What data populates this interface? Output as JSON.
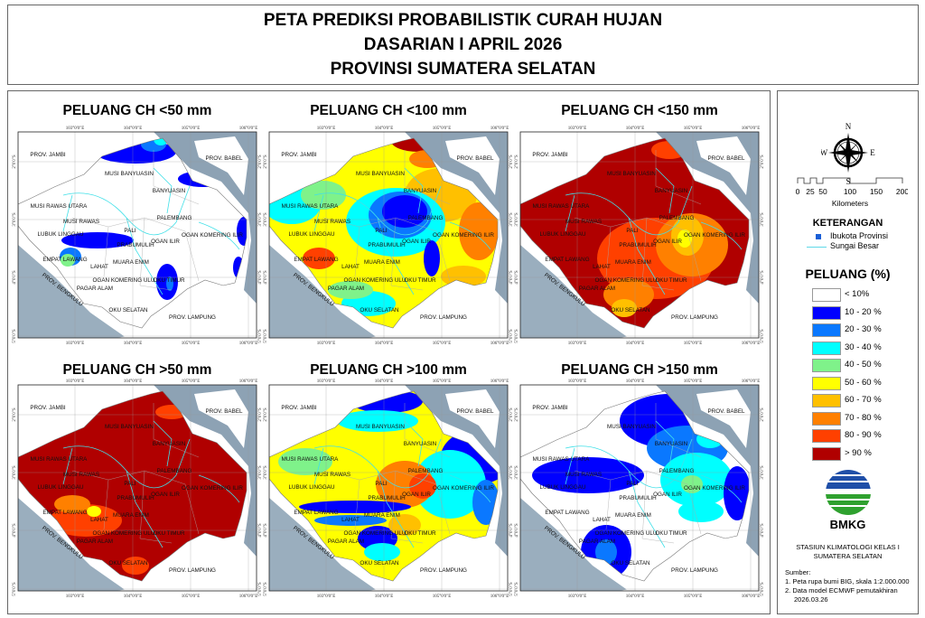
{
  "header": {
    "line1": "PETA PREDIKSI PROBABILISTIK CURAH HUJAN",
    "line2": "DASARIAN I APRIL 2026",
    "line3": "PROVINSI SUMATERA SELATAN"
  },
  "maps": [
    {
      "title": "PELUANG CH <50 mm"
    },
    {
      "title": "PELUANG CH <100 mm"
    },
    {
      "title": "PELUANG CH <150 mm"
    },
    {
      "title": "PELUANG CH >50 mm"
    },
    {
      "title": "PELUANG CH >100 mm"
    },
    {
      "title": "PELUANG CH >150 mm"
    }
  ],
  "region_labels": [
    "PROV. JAMBI",
    "PROV. BABEL",
    "MUSI BANYUASIN",
    "BANYUASIN",
    "MUSI RAWAS UTARA",
    "MUSI RAWAS",
    "PALEMBANG",
    "LUBUK LINGGAU",
    "PALI",
    "OGAN KOMERING ILIR",
    "PRABUMULIH",
    "OGAN ILIR",
    "EMPAT LAWANG",
    "LAHAT",
    "MUARA ENIM",
    "OGAN KOMERING ULU",
    "OKU TIMUR",
    "PAGAR ALAM",
    "OKU SELATAN",
    "PROV. LAMPUNG",
    "PROV. BENGKULU"
  ],
  "lon_labels": [
    "103°0'0\"E",
    "104°0'0\"E",
    "105°0'0\"E",
    "106°0'0\"E"
  ],
  "lat_labels": [
    "2°0'0\"S",
    "3°0'0\"S",
    "4°0'0\"S",
    "5°0'0\"S"
  ],
  "legend": {
    "compass": {
      "n": "N",
      "s": "S",
      "e": "E",
      "w": "W"
    },
    "scale_ticks": [
      "0",
      "25",
      "50",
      "100",
      "150",
      "200"
    ],
    "scale_unit": "Kilometers",
    "keterangan_title": "KETERANGAN",
    "ibukota": "Ibukota Provinsi",
    "sungai": "Sungai Besar",
    "peluang_title": "PELUANG (%)",
    "classes": [
      {
        "label": "< 10%",
        "color": "#ffffff"
      },
      {
        "label": "10 - 20 %",
        "color": "#0000ff"
      },
      {
        "label": "20 - 30 %",
        "color": "#0a78ff"
      },
      {
        "label": "30 - 40 %",
        "color": "#00ffff"
      },
      {
        "label": "40 - 50 %",
        "color": "#7ff28a"
      },
      {
        "label": "50 - 60 %",
        "color": "#ffff00"
      },
      {
        "label": "60 - 70 %",
        "color": "#ffc000"
      },
      {
        "label": "70 - 80 %",
        "color": "#ff8000"
      },
      {
        "label": "80 - 90 %",
        "color": "#ff4000"
      },
      {
        "label": "> 90 %",
        "color": "#b00000"
      }
    ],
    "logo_text": "BMKG",
    "station_line1": "STASIUN KLIMATOLOGI KELAS I",
    "station_line2": "SUMATERA SELATAN",
    "sumber_title": "Sumber:",
    "sumber1": "1. Peta rupa bumi BIG, skala 1:2.000.000",
    "sumber2": "2. Data model ECMWF pemutakhiran",
    "sumber3": "2026.03.26"
  }
}
